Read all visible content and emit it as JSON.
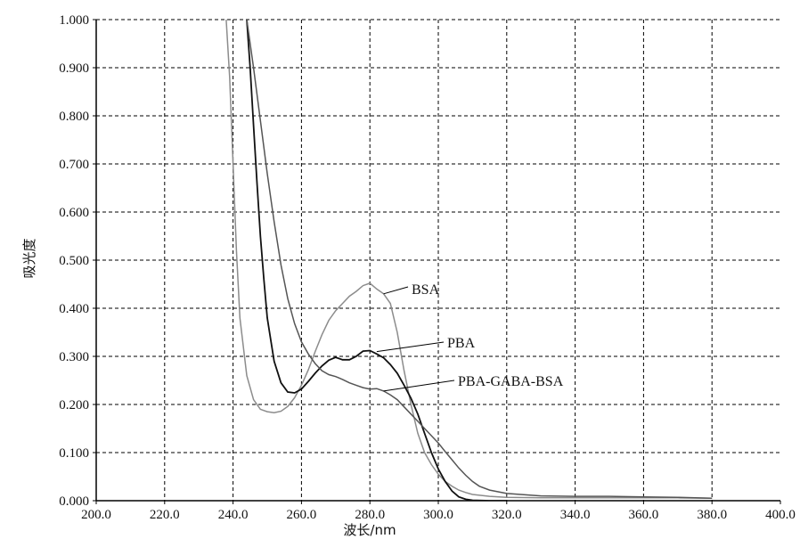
{
  "chart_data": {
    "type": "line",
    "title": "",
    "xlabel": "波长/nm",
    "ylabel": "吸光度",
    "xlim": [
      200,
      400
    ],
    "ylim": [
      0,
      1
    ],
    "grid": true,
    "x_ticks": [
      "200.0",
      "220.0",
      "240.0",
      "260.0",
      "280.0",
      "300.0",
      "320.0",
      "340.0",
      "360.0",
      "380.0",
      "400.0"
    ],
    "y_ticks": [
      "0.000",
      "0.100",
      "0.200",
      "0.300",
      "0.400",
      "0.500",
      "0.600",
      "0.700",
      "0.800",
      "0.900",
      "1.000"
    ],
    "series": [
      {
        "name": "BSA",
        "color": "#8c8c8c",
        "x": [
          238,
          239,
          240,
          241,
          242,
          244,
          246,
          248,
          250,
          252,
          254,
          256,
          258,
          260,
          262,
          264,
          266,
          268,
          270,
          272,
          274,
          276,
          278,
          280,
          282,
          284,
          286,
          288,
          290,
          292,
          294,
          296,
          298,
          300,
          302,
          304,
          306,
          308,
          310,
          315,
          320,
          330,
          340,
          350,
          360,
          370,
          380
        ],
        "y": [
          1.0,
          0.88,
          0.7,
          0.52,
          0.38,
          0.26,
          0.21,
          0.19,
          0.185,
          0.183,
          0.186,
          0.196,
          0.214,
          0.24,
          0.272,
          0.31,
          0.345,
          0.375,
          0.395,
          0.41,
          0.425,
          0.435,
          0.447,
          0.452,
          0.44,
          0.43,
          0.41,
          0.35,
          0.27,
          0.2,
          0.14,
          0.1,
          0.075,
          0.055,
          0.04,
          0.03,
          0.022,
          0.017,
          0.013,
          0.009,
          0.007,
          0.006,
          0.006,
          0.006,
          0.006,
          0.006,
          0.005
        ]
      },
      {
        "name": "PBA",
        "color": "#111111",
        "x": [
          244,
          245,
          246,
          247,
          248,
          249,
          250,
          252,
          254,
          256,
          258,
          260,
          262,
          264,
          266,
          268,
          270,
          272,
          274,
          276,
          278,
          280,
          282,
          284,
          286,
          288,
          290,
          292,
          294,
          296,
          298,
          300,
          302,
          304,
          306,
          308,
          310,
          315,
          320
        ],
        "y": [
          1.0,
          0.9,
          0.78,
          0.66,
          0.55,
          0.46,
          0.38,
          0.29,
          0.245,
          0.226,
          0.224,
          0.232,
          0.248,
          0.265,
          0.28,
          0.292,
          0.298,
          0.293,
          0.293,
          0.3,
          0.311,
          0.312,
          0.305,
          0.297,
          0.283,
          0.265,
          0.24,
          0.213,
          0.18,
          0.14,
          0.1,
          0.066,
          0.04,
          0.02,
          0.008,
          0.003,
          0.001,
          0.0,
          0.0
        ]
      },
      {
        "name": "PBA-GABA-BSA",
        "color": "#555555",
        "x": [
          244,
          246,
          248,
          250,
          252,
          254,
          256,
          258,
          260,
          262,
          264,
          266,
          268,
          270,
          272,
          274,
          276,
          278,
          280,
          282,
          284,
          286,
          288,
          290,
          292,
          294,
          296,
          298,
          300,
          302,
          304,
          306,
          308,
          310,
          312,
          315,
          320,
          330,
          340,
          350,
          360,
          370,
          380
        ],
        "y": [
          1.0,
          0.9,
          0.79,
          0.68,
          0.58,
          0.49,
          0.42,
          0.368,
          0.33,
          0.305,
          0.285,
          0.27,
          0.262,
          0.258,
          0.252,
          0.245,
          0.24,
          0.235,
          0.232,
          0.233,
          0.228,
          0.22,
          0.21,
          0.195,
          0.18,
          0.165,
          0.15,
          0.135,
          0.12,
          0.102,
          0.085,
          0.068,
          0.053,
          0.04,
          0.03,
          0.022,
          0.015,
          0.01,
          0.009,
          0.009,
          0.008,
          0.007,
          0.005
        ]
      }
    ],
    "annotations": [
      {
        "text": "BSA",
        "series": "BSA",
        "x": 284,
        "y": 0.43
      },
      {
        "text": "PBA",
        "series": "PBA",
        "x": 282,
        "y": 0.31
      },
      {
        "text": "PBA-GABA-BSA",
        "series": "PBA-GABA-BSA",
        "x": 284,
        "y": 0.228
      }
    ]
  }
}
